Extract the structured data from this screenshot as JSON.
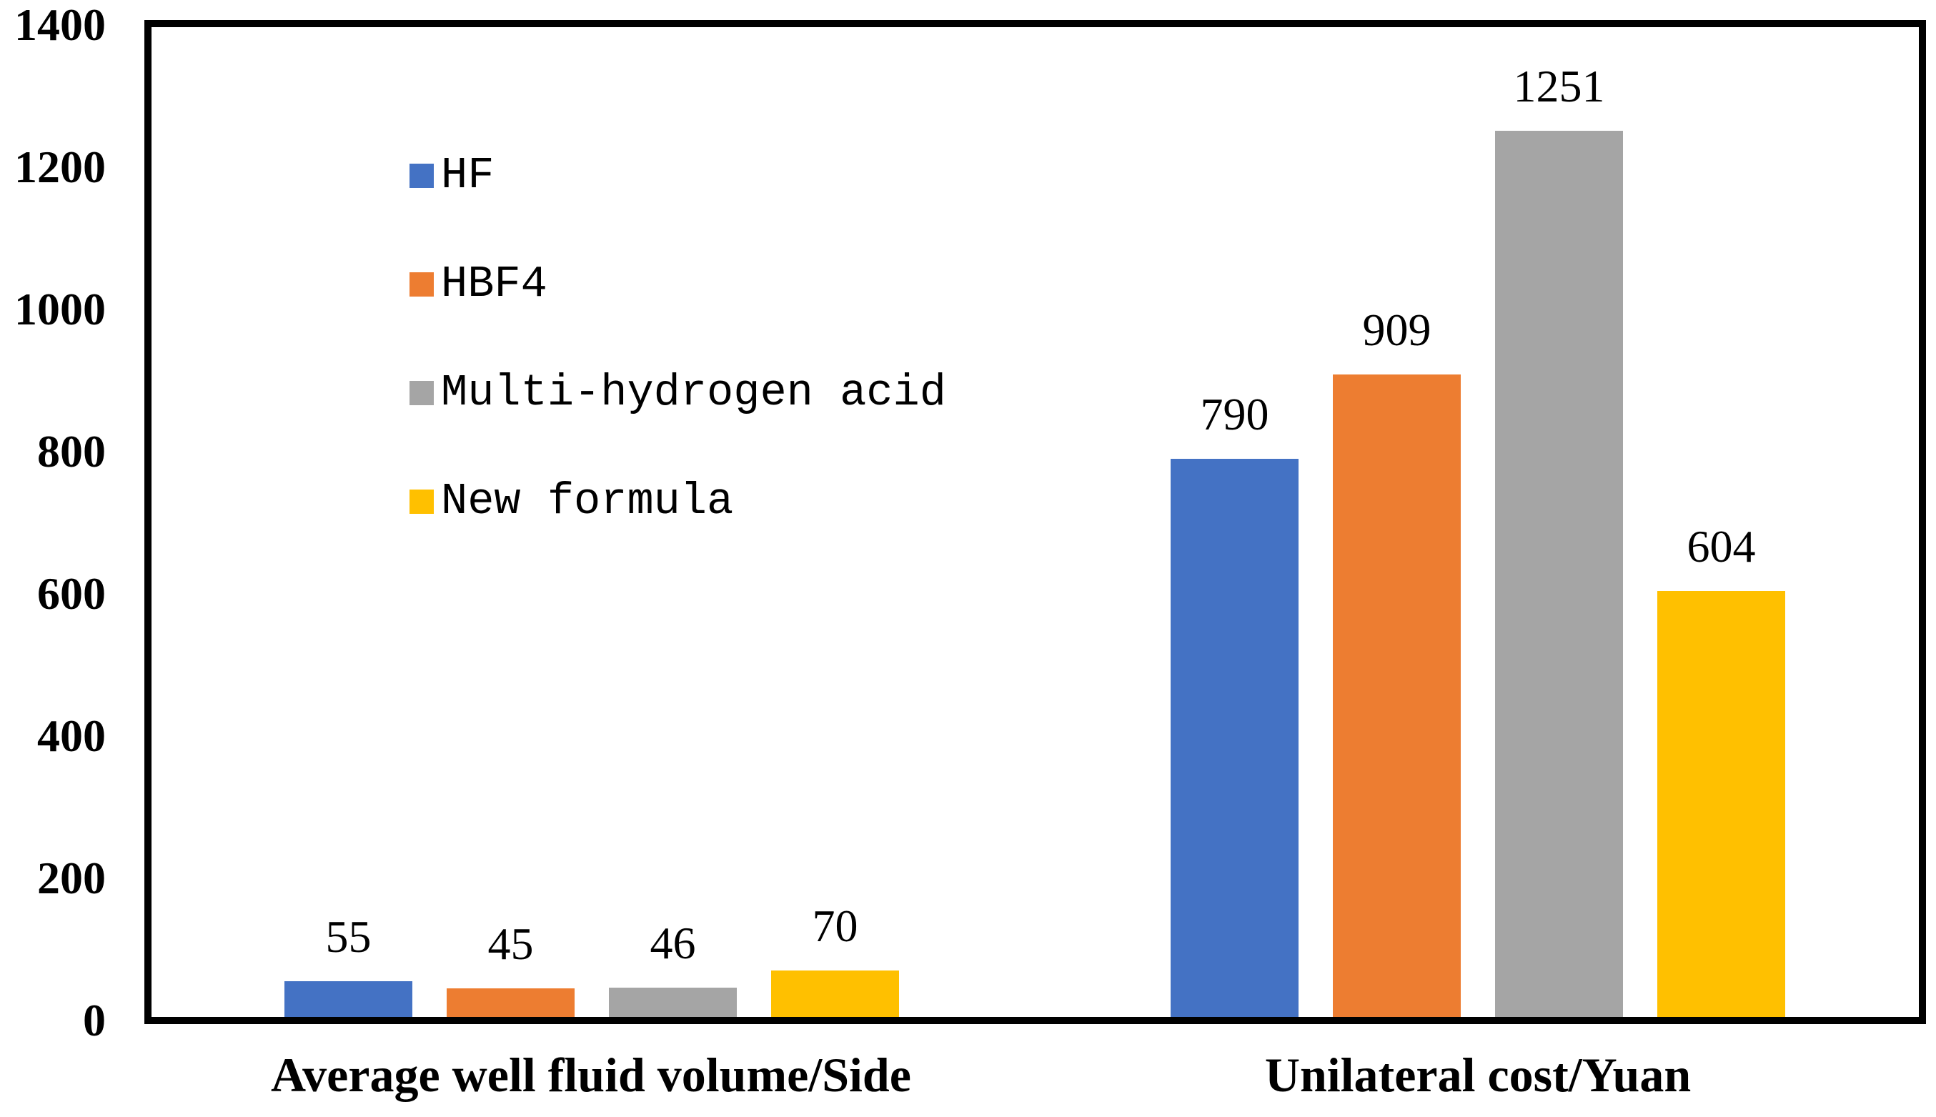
{
  "chart_data": {
    "type": "bar",
    "title": "",
    "categories": [
      "Average well fluid volume/Side",
      "Unilateral cost/Yuan"
    ],
    "series": [
      {
        "name": "HF",
        "color": "#4472C4",
        "values": [
          55,
          790
        ]
      },
      {
        "name": "HBF4",
        "color": "#ED7D31",
        "values": [
          45,
          909
        ]
      },
      {
        "name": "Multi-hydrogen acid",
        "color": "#A5A5A5",
        "values": [
          46,
          1251
        ]
      },
      {
        "name": "New formula",
        "color": "#FFC000",
        "values": [
          70,
          604
        ]
      }
    ],
    "xlabel": "",
    "ylabel": "",
    "ylim": [
      0,
      1400
    ],
    "yticks": [
      0,
      200,
      400,
      600,
      800,
      1000,
      1200,
      1400
    ],
    "grid": false,
    "data_labels": true,
    "legend_position": "upper-left-inside",
    "axis_color": "#000000",
    "background_color": "#FFFFFF"
  }
}
